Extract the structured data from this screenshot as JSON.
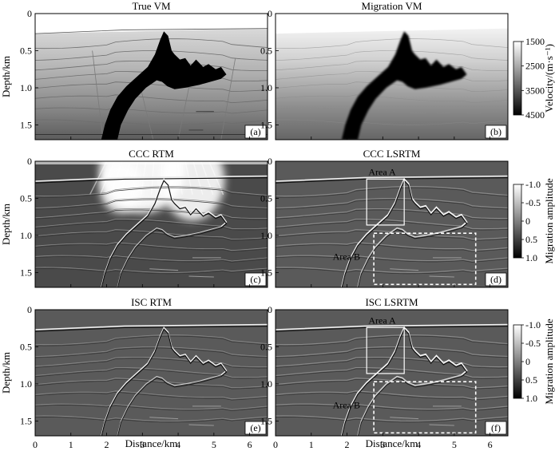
{
  "panels": [
    {
      "id": "a",
      "title": "True VM",
      "label": "(a)",
      "type": "velocity",
      "smooth": false
    },
    {
      "id": "b",
      "title": "Migration VM",
      "label": "(b)",
      "type": "velocity",
      "smooth": true
    },
    {
      "id": "c",
      "title": "CCC RTM",
      "label": "(c)",
      "type": "rtm",
      "noisy": true
    },
    {
      "id": "d",
      "title": "CCC LSRTM",
      "label": "(d)",
      "type": "lsrtm",
      "areas": true
    },
    {
      "id": "e",
      "title": "ISC RTM",
      "label": "(e)",
      "type": "rtm",
      "noisy": false
    },
    {
      "id": "f",
      "title": "ISC LSRTM",
      "label": "(f)",
      "type": "lsrtm",
      "areas": true
    }
  ],
  "axes": {
    "ylabel": "Depth/km",
    "xlabel": "Distance/km",
    "y_ticks": [
      "0",
      "0.5",
      "1.0",
      "1.5"
    ],
    "x_ticks": [
      "0",
      "1",
      "2",
      "3",
      "4",
      "5",
      "6"
    ],
    "y_range_km": [
      0,
      1.7
    ],
    "x_range_km": [
      0,
      6.5
    ]
  },
  "colorbars": [
    {
      "label": "Velocity/(m·s⁻¹)",
      "ticks": [
        "1500",
        "2500",
        "3500",
        "4500"
      ],
      "light_top": true
    },
    {
      "label": "Migration amplitude",
      "ticks": [
        "-1.0",
        "-0.5",
        "0",
        "0.5",
        "1.0"
      ],
      "light_top": true
    },
    {
      "label": "Migration amplitude",
      "ticks": [
        "-1.0",
        "-0.5",
        "0",
        "0.5",
        "1.0"
      ],
      "light_top": true
    }
  ],
  "annotations": {
    "area_a": "Area A",
    "area_b": "Area B"
  }
}
